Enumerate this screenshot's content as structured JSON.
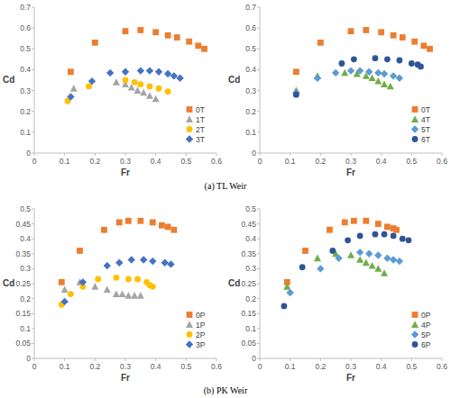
{
  "chart_data": [
    {
      "type": "scatter",
      "x_label": "Fr",
      "y_label": "Cd",
      "xlim": [
        0,
        0.6
      ],
      "ylim": [
        0,
        0.7
      ],
      "xticks": [
        0,
        0.1,
        0.2,
        0.3,
        0.4,
        0.5,
        0.6
      ],
      "yticks": [
        0,
        0.1,
        0.2,
        0.3,
        0.4,
        0.5,
        0.6,
        0.7
      ],
      "grid": false,
      "legend": "lower right",
      "series": [
        {
          "name": "0T",
          "color": "#ed7d31",
          "marker": "square",
          "x": [
            0.12,
            0.2,
            0.3,
            0.35,
            0.4,
            0.44,
            0.47,
            0.51,
            0.54,
            0.56
          ],
          "values": [
            0.39,
            0.53,
            0.585,
            0.59,
            0.58,
            0.565,
            0.555,
            0.535,
            0.515,
            0.5
          ]
        },
        {
          "name": "1T",
          "color": "#a5a5a5",
          "marker": "triangle",
          "x": [
            0.13,
            0.27,
            0.3,
            0.32,
            0.34,
            0.36,
            0.38,
            0.4
          ],
          "values": [
            0.31,
            0.34,
            0.33,
            0.315,
            0.3,
            0.29,
            0.275,
            0.26
          ]
        },
        {
          "name": "2T",
          "color": "#ffc000",
          "marker": "circle",
          "x": [
            0.11,
            0.18,
            0.3,
            0.33,
            0.35,
            0.38,
            0.41,
            0.44
          ],
          "values": [
            0.25,
            0.32,
            0.35,
            0.34,
            0.33,
            0.32,
            0.31,
            0.295
          ]
        },
        {
          "name": "3T",
          "color": "#4472c4",
          "marker": "diamond",
          "x": [
            0.12,
            0.19,
            0.25,
            0.3,
            0.35,
            0.38,
            0.41,
            0.44,
            0.46,
            0.48
          ],
          "values": [
            0.27,
            0.345,
            0.385,
            0.39,
            0.395,
            0.395,
            0.39,
            0.38,
            0.37,
            0.36
          ]
        }
      ]
    },
    {
      "type": "scatter",
      "x_label": "Fr",
      "y_label": "Cd",
      "xlim": [
        0,
        0.6
      ],
      "ylim": [
        0,
        0.7
      ],
      "xticks": [
        0,
        0.1,
        0.2,
        0.3,
        0.4,
        0.5,
        0.6
      ],
      "yticks": [
        0,
        0.1,
        0.2,
        0.3,
        0.4,
        0.5,
        0.6,
        0.7
      ],
      "grid": false,
      "legend": "lower right",
      "series": [
        {
          "name": "0T",
          "color": "#ed7d31",
          "marker": "square",
          "x": [
            0.12,
            0.2,
            0.3,
            0.35,
            0.4,
            0.44,
            0.47,
            0.51,
            0.54,
            0.56
          ],
          "values": [
            0.39,
            0.53,
            0.585,
            0.59,
            0.58,
            0.565,
            0.555,
            0.535,
            0.515,
            0.5
          ]
        },
        {
          "name": "4T",
          "color": "#70ad47",
          "marker": "triangle",
          "x": [
            0.12,
            0.19,
            0.28,
            0.32,
            0.35,
            0.37,
            0.39,
            0.41,
            0.43
          ],
          "values": [
            0.3,
            0.37,
            0.385,
            0.38,
            0.37,
            0.36,
            0.345,
            0.33,
            0.32
          ]
        },
        {
          "name": "5T",
          "color": "#5b9bd5",
          "marker": "diamond",
          "x": [
            0.12,
            0.19,
            0.25,
            0.3,
            0.33,
            0.36,
            0.39,
            0.41,
            0.44,
            0.46
          ],
          "values": [
            0.29,
            0.36,
            0.385,
            0.395,
            0.395,
            0.39,
            0.385,
            0.38,
            0.37,
            0.36
          ]
        },
        {
          "name": "6T",
          "color": "#2f5597",
          "marker": "circle",
          "x": [
            0.12,
            0.27,
            0.31,
            0.38,
            0.42,
            0.46,
            0.5,
            0.52,
            0.53
          ],
          "values": [
            0.28,
            0.43,
            0.45,
            0.455,
            0.45,
            0.445,
            0.43,
            0.425,
            0.415
          ]
        }
      ]
    },
    {
      "type": "scatter",
      "x_label": "Fr",
      "y_label": "Cd",
      "xlim": [
        0,
        0.6
      ],
      "ylim": [
        0,
        0.5
      ],
      "xticks": [
        0,
        0.1,
        0.2,
        0.3,
        0.4,
        0.5,
        0.6
      ],
      "yticks": [
        0,
        0.05,
        0.1,
        0.15,
        0.2,
        0.25,
        0.3,
        0.35,
        0.4,
        0.45,
        0.5
      ],
      "grid": false,
      "legend": "lower right",
      "series": [
        {
          "name": "0P",
          "color": "#ed7d31",
          "marker": "square",
          "x": [
            0.09,
            0.15,
            0.23,
            0.28,
            0.31,
            0.35,
            0.39,
            0.42,
            0.44,
            0.46
          ],
          "values": [
            0.255,
            0.36,
            0.43,
            0.455,
            0.46,
            0.46,
            0.455,
            0.445,
            0.44,
            0.43
          ]
        },
        {
          "name": "1P",
          "color": "#a5a5a5",
          "marker": "triangle",
          "x": [
            0.1,
            0.15,
            0.2,
            0.24,
            0.27,
            0.29,
            0.31,
            0.33,
            0.35
          ],
          "values": [
            0.23,
            0.255,
            0.24,
            0.23,
            0.215,
            0.215,
            0.21,
            0.21,
            0.21
          ]
        },
        {
          "name": "2P",
          "color": "#ffc000",
          "marker": "circle",
          "x": [
            0.09,
            0.12,
            0.16,
            0.21,
            0.27,
            0.31,
            0.34,
            0.37,
            0.38,
            0.39
          ],
          "values": [
            0.18,
            0.215,
            0.24,
            0.265,
            0.27,
            0.265,
            0.265,
            0.255,
            0.245,
            0.24
          ]
        },
        {
          "name": "3P",
          "color": "#4472c4",
          "marker": "diamond",
          "x": [
            0.1,
            0.16,
            0.24,
            0.28,
            0.32,
            0.36,
            0.39,
            0.43,
            0.45
          ],
          "values": [
            0.19,
            0.255,
            0.31,
            0.32,
            0.33,
            0.33,
            0.325,
            0.32,
            0.315
          ]
        }
      ]
    },
    {
      "type": "scatter",
      "x_label": "Fr",
      "y_label": "Cd",
      "xlim": [
        0,
        0.6
      ],
      "ylim": [
        0,
        0.5
      ],
      "xticks": [
        0,
        0.1,
        0.2,
        0.3,
        0.4,
        0.5,
        0.6
      ],
      "yticks": [
        0,
        0.05,
        0.1,
        0.15,
        0.2,
        0.25,
        0.3,
        0.35,
        0.4,
        0.45,
        0.5
      ],
      "grid": false,
      "legend": "lower right",
      "series": [
        {
          "name": "0P",
          "color": "#ed7d31",
          "marker": "square",
          "x": [
            0.09,
            0.15,
            0.23,
            0.28,
            0.31,
            0.35,
            0.39,
            0.42,
            0.44,
            0.45
          ],
          "values": [
            0.255,
            0.36,
            0.43,
            0.455,
            0.46,
            0.46,
            0.45,
            0.44,
            0.435,
            0.43
          ]
        },
        {
          "name": "4P",
          "color": "#70ad47",
          "marker": "triangle",
          "x": [
            0.09,
            0.19,
            0.25,
            0.3,
            0.33,
            0.35,
            0.37,
            0.39,
            0.41
          ],
          "values": [
            0.24,
            0.335,
            0.35,
            0.345,
            0.33,
            0.32,
            0.31,
            0.3,
            0.285
          ]
        },
        {
          "name": "5P",
          "color": "#5b9bd5",
          "marker": "diamond",
          "x": [
            0.1,
            0.2,
            0.26,
            0.33,
            0.36,
            0.39,
            0.42,
            0.44,
            0.46
          ],
          "values": [
            0.22,
            0.3,
            0.335,
            0.355,
            0.35,
            0.345,
            0.335,
            0.33,
            0.325
          ]
        },
        {
          "name": "6P",
          "color": "#2f5597",
          "marker": "circle",
          "x": [
            0.08,
            0.14,
            0.24,
            0.29,
            0.33,
            0.38,
            0.41,
            0.44,
            0.47,
            0.49
          ],
          "values": [
            0.175,
            0.305,
            0.36,
            0.395,
            0.41,
            0.415,
            0.415,
            0.41,
            0.4,
            0.395
          ]
        }
      ]
    }
  ],
  "captions": [
    "(a) TL Weir",
    "(b) PK Weir"
  ]
}
